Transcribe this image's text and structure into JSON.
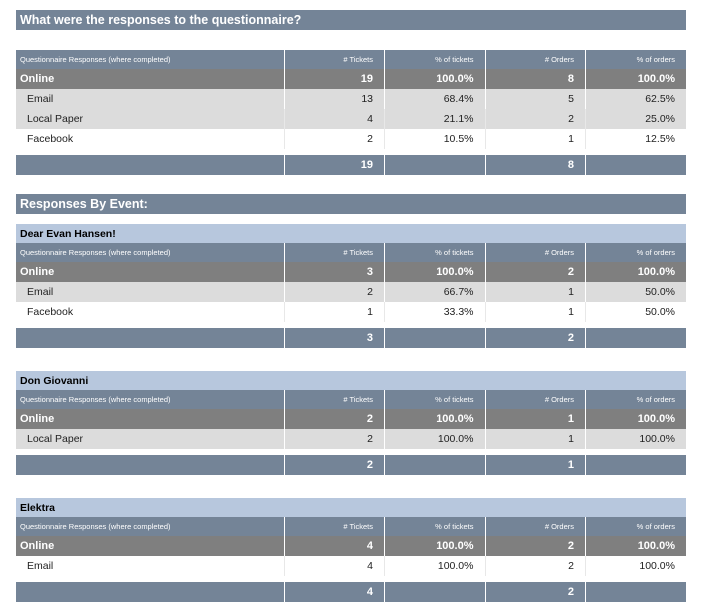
{
  "colors": {
    "header_blue_gray": "#748497",
    "event_header_blue": "#b7c7dd",
    "online_gray": "#7f7f7f",
    "row_shade": "#dcdcdc"
  },
  "headers": {
    "category": "Questionnaire Responses (where completed)",
    "tickets": "# Tickets",
    "pct_tickets": "% of tickets",
    "orders": "# Orders",
    "pct_orders": "% of orders"
  },
  "summary": {
    "title": "What were the responses to the questionnaire?",
    "online": {
      "label": "Online",
      "tickets": "19",
      "pct_tickets": "100.0%",
      "orders": "8",
      "pct_orders": "100.0%"
    },
    "rows": [
      {
        "label": "Email",
        "tickets": "13",
        "pct_tickets": "68.4%",
        "orders": "5",
        "pct_orders": "62.5%"
      },
      {
        "label": "Local Paper",
        "tickets": "4",
        "pct_tickets": "21.1%",
        "orders": "2",
        "pct_orders": "25.0%"
      },
      {
        "label": "Facebook",
        "tickets": "2",
        "pct_tickets": "10.5%",
        "orders": "1",
        "pct_orders": "12.5%"
      }
    ],
    "total": {
      "tickets": "19",
      "orders": "8"
    }
  },
  "by_event_title": "Responses By Event:",
  "events": [
    {
      "name": "Dear Evan Hansen!",
      "online": {
        "label": "Online",
        "tickets": "3",
        "pct_tickets": "100.0%",
        "orders": "2",
        "pct_orders": "100.0%"
      },
      "rows": [
        {
          "label": "Email",
          "tickets": "2",
          "pct_tickets": "66.7%",
          "orders": "1",
          "pct_orders": "50.0%"
        },
        {
          "label": "Facebook",
          "tickets": "1",
          "pct_tickets": "33.3%",
          "orders": "1",
          "pct_orders": "50.0%"
        }
      ],
      "total": {
        "tickets": "3",
        "orders": "2"
      }
    },
    {
      "name": "Don Giovanni",
      "online": {
        "label": "Online",
        "tickets": "2",
        "pct_tickets": "100.0%",
        "orders": "1",
        "pct_orders": "100.0%"
      },
      "rows": [
        {
          "label": "Local Paper",
          "tickets": "2",
          "pct_tickets": "100.0%",
          "orders": "1",
          "pct_orders": "100.0%"
        }
      ],
      "total": {
        "tickets": "2",
        "orders": "1"
      }
    },
    {
      "name": "Elektra",
      "online": {
        "label": "Online",
        "tickets": "4",
        "pct_tickets": "100.0%",
        "orders": "2",
        "pct_orders": "100.0%"
      },
      "rows": [
        {
          "label": "Email",
          "tickets": "4",
          "pct_tickets": "100.0%",
          "orders": "2",
          "pct_orders": "100.0%"
        }
      ],
      "total": {
        "tickets": "4",
        "orders": "2"
      }
    }
  ]
}
